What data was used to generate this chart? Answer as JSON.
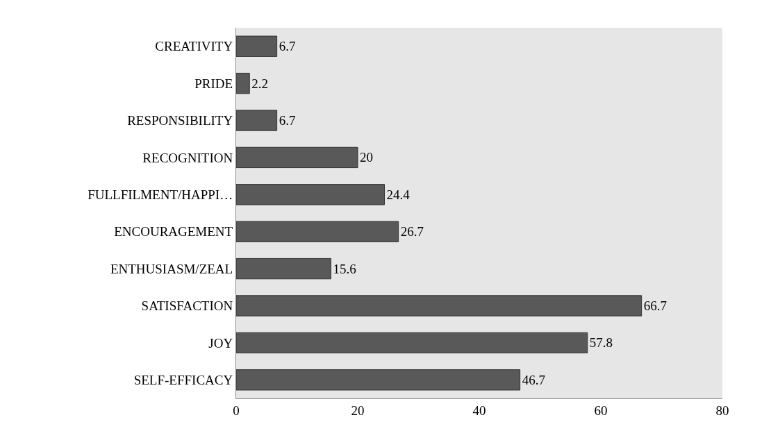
{
  "chart_data": {
    "type": "bar",
    "orientation": "horizontal",
    "categories": [
      "CREATIVITY",
      "PRIDE",
      "RESPONSIBILITY",
      "RECOGNITION",
      "FULLFILMENT/HAPPI…",
      "ENCOURAGEMENT",
      "ENTHUSIASM/ZEAL",
      "SATISFACTION",
      "JOY",
      "SELF-EFFICACY"
    ],
    "values": [
      6.7,
      2.2,
      6.7,
      20,
      24.4,
      26.7,
      15.6,
      66.7,
      57.8,
      46.7
    ],
    "color": "#595959",
    "xlim": [
      0,
      80
    ],
    "xticks": [
      0,
      20,
      40,
      60,
      80
    ],
    "data_labels": true,
    "grid": false,
    "legend": false
  }
}
